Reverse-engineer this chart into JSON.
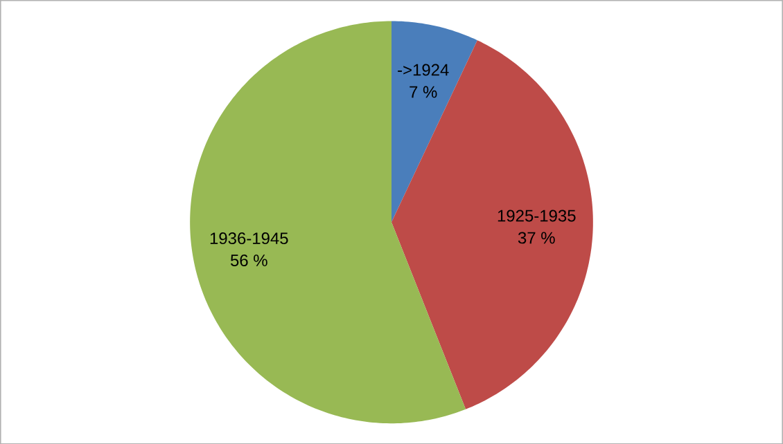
{
  "chart_data": {
    "type": "pie",
    "categories": [
      "->1924",
      "1925-1935",
      "1936-1945"
    ],
    "values": [
      7,
      37,
      56
    ],
    "value_labels": [
      "7 %",
      "37 %",
      "56 %"
    ],
    "colors": [
      "#4a7ebb",
      "#be4b48",
      "#98b954"
    ]
  }
}
